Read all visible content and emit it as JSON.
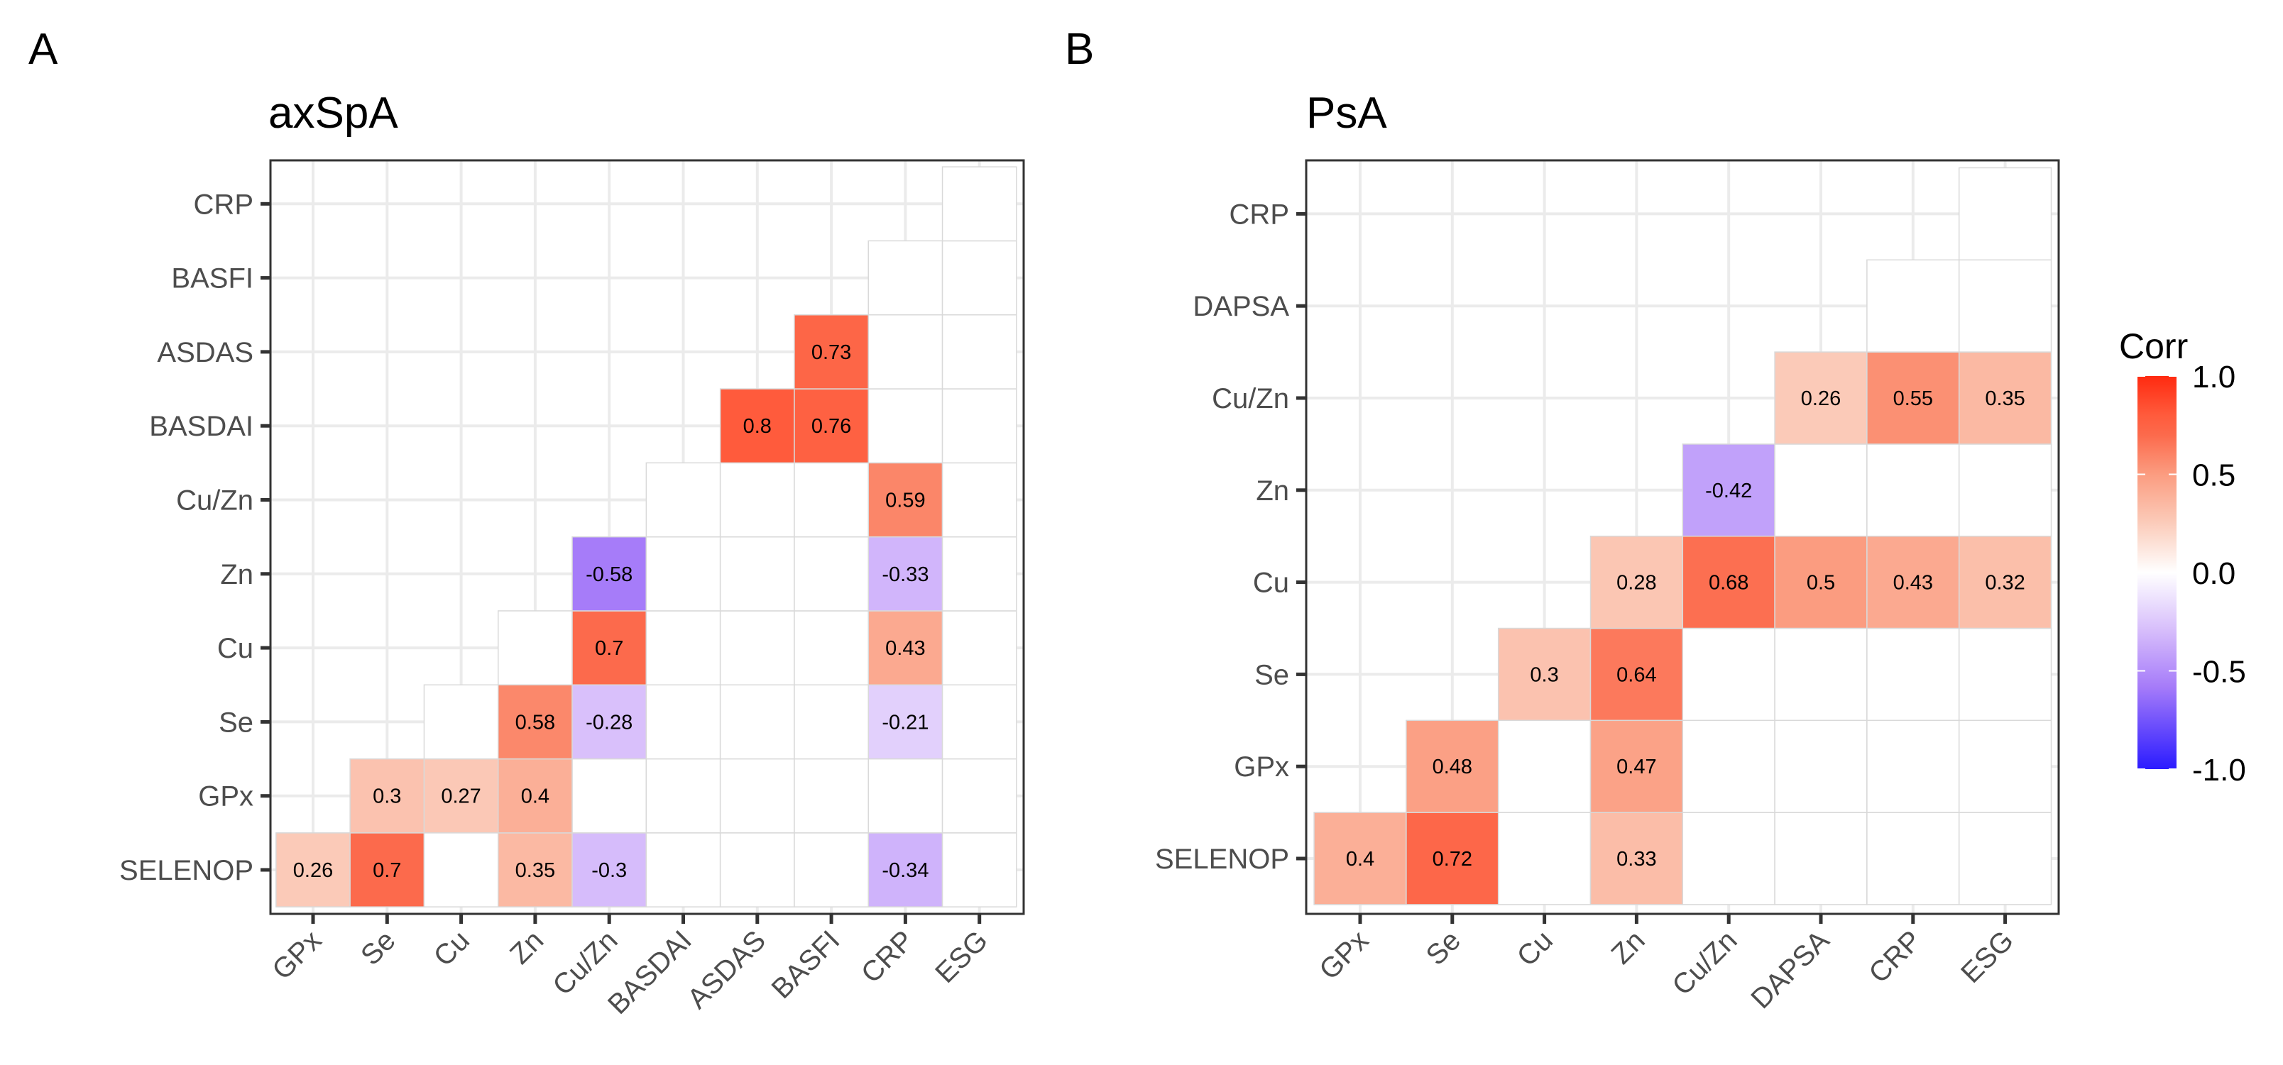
{
  "chart_data": [
    {
      "type": "heatmap",
      "panel_label": "A",
      "title": "axSpA",
      "x_categories": [
        "GPx",
        "Se",
        "Cu",
        "Zn",
        "Cu/Zn",
        "BASDAI",
        "ASDAS",
        "BASFI",
        "CRP",
        "ESG"
      ],
      "y_categories": [
        "SELENOP",
        "GPx",
        "Se",
        "Cu",
        "Zn",
        "Cu/Zn",
        "BASDAI",
        "ASDAS",
        "BASFI",
        "CRP"
      ],
      "triangle": "lower",
      "values": [
        {
          "y": "SELENOP",
          "x": "GPx",
          "v": 0.26
        },
        {
          "y": "SELENOP",
          "x": "Se",
          "v": 0.7
        },
        {
          "y": "SELENOP",
          "x": "Zn",
          "v": 0.35
        },
        {
          "y": "SELENOP",
          "x": "Cu/Zn",
          "v": -0.3
        },
        {
          "y": "SELENOP",
          "x": "CRP",
          "v": -0.34
        },
        {
          "y": "GPx",
          "x": "Se",
          "v": 0.3
        },
        {
          "y": "GPx",
          "x": "Cu",
          "v": 0.27
        },
        {
          "y": "GPx",
          "x": "Zn",
          "v": 0.4
        },
        {
          "y": "Se",
          "x": "Zn",
          "v": 0.58
        },
        {
          "y": "Se",
          "x": "Cu/Zn",
          "v": -0.28
        },
        {
          "y": "Se",
          "x": "CRP",
          "v": -0.21
        },
        {
          "y": "Cu",
          "x": "Cu/Zn",
          "v": 0.7
        },
        {
          "y": "Cu",
          "x": "CRP",
          "v": 0.43
        },
        {
          "y": "Zn",
          "x": "Cu/Zn",
          "v": -0.58
        },
        {
          "y": "Zn",
          "x": "CRP",
          "v": -0.33
        },
        {
          "y": "Cu/Zn",
          "x": "CRP",
          "v": 0.59
        },
        {
          "y": "BASDAI",
          "x": "ASDAS",
          "v": 0.8
        },
        {
          "y": "BASDAI",
          "x": "BASFI",
          "v": 0.76
        },
        {
          "y": "ASDAS",
          "x": "BASFI",
          "v": 0.73
        }
      ]
    },
    {
      "type": "heatmap",
      "panel_label": "B",
      "title": "PsA",
      "x_categories": [
        "GPx",
        "Se",
        "Cu",
        "Zn",
        "Cu/Zn",
        "DAPSA",
        "CRP",
        "ESG"
      ],
      "y_categories": [
        "SELENOP",
        "GPx",
        "Se",
        "Cu",
        "Zn",
        "Cu/Zn",
        "DAPSA",
        "CRP"
      ],
      "triangle": "lower",
      "values": [
        {
          "y": "SELENOP",
          "x": "GPx",
          "v": 0.4
        },
        {
          "y": "SELENOP",
          "x": "Se",
          "v": 0.72
        },
        {
          "y": "SELENOP",
          "x": "Zn",
          "v": 0.33
        },
        {
          "y": "GPx",
          "x": "Se",
          "v": 0.48
        },
        {
          "y": "GPx",
          "x": "Zn",
          "v": 0.47
        },
        {
          "y": "Se",
          "x": "Cu",
          "v": 0.3
        },
        {
          "y": "Se",
          "x": "Zn",
          "v": 0.64
        },
        {
          "y": "Cu",
          "x": "Zn",
          "v": 0.28
        },
        {
          "y": "Cu",
          "x": "Cu/Zn",
          "v": 0.68
        },
        {
          "y": "Cu",
          "x": "DAPSA",
          "v": 0.5
        },
        {
          "y": "Cu",
          "x": "CRP",
          "v": 0.43
        },
        {
          "y": "Cu",
          "x": "ESG",
          "v": 0.32
        },
        {
          "y": "Zn",
          "x": "Cu/Zn",
          "v": -0.42
        },
        {
          "y": "Cu/Zn",
          "x": "DAPSA",
          "v": 0.26
        },
        {
          "y": "Cu/Zn",
          "x": "CRP",
          "v": 0.55
        },
        {
          "y": "Cu/Zn",
          "x": "ESG",
          "v": 0.35
        }
      ]
    }
  ],
  "legend": {
    "title": "Corr",
    "range": [
      -1,
      1
    ],
    "ticks": [
      "1.0",
      "0.5",
      "0.0",
      "-0.5",
      "-1.0"
    ],
    "tick_values": [
      1,
      0.5,
      0,
      -0.5,
      -1
    ],
    "color_stops": [
      [
        -1,
        "#2B1BFF"
      ],
      [
        -0.58,
        "#A67CF9"
      ],
      [
        -0.3,
        "#D6BCFB"
      ],
      [
        0,
        "#FFFFFF"
      ],
      [
        0.26,
        "#FBCAB8"
      ],
      [
        0.5,
        "#FB9C80"
      ],
      [
        0.7,
        "#FC6A4C"
      ],
      [
        0.8,
        "#FF5B3C"
      ],
      [
        1,
        "#FF2A10"
      ]
    ],
    "placement": "right"
  }
}
